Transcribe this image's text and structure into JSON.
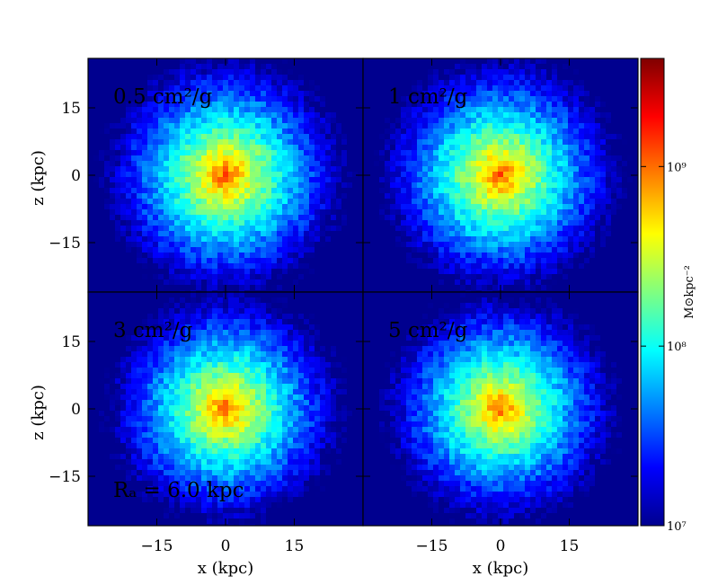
{
  "chart_data": {
    "type": "heatmap",
    "x_unit_label": "x (kpc)",
    "z_unit_label": "z (kpc)",
    "x_ticks": [
      -15,
      0,
      15
    ],
    "z_ticks": [
      15,
      0,
      -15
    ],
    "x_tick_labels": [
      "−15",
      "0",
      "15"
    ],
    "z_tick_labels": [
      "15",
      "0",
      "−15"
    ],
    "xlim": [
      -30,
      30
    ],
    "zlim": [
      -26,
      26
    ],
    "grid": false,
    "colorbar": {
      "label": "M⊙kpc⁻²",
      "scale": "log",
      "range": [
        10000000,
        4000000000
      ],
      "tick_values": [
        10000000,
        100000000,
        1000000000
      ],
      "tick_labels": [
        "10⁷",
        "10⁸",
        "10⁹"
      ],
      "colormap": [
        "#00008f",
        "#0000ff",
        "#0080ff",
        "#00ffff",
        "#80ff80",
        "#ffff00",
        "#ff8000",
        "#ff0000",
        "#800000"
      ]
    },
    "extra_annotation": "Rₐ = 6.0 kpc",
    "panels": [
      {
        "label": "0.5 cm²/g",
        "peak_surface_density": 1500000000
      },
      {
        "label": "1 cm²/g",
        "peak_surface_density": 1450000000
      },
      {
        "label": "3 cm²/g",
        "peak_surface_density": 1350000000
      },
      {
        "label": "5 cm²/g",
        "peak_surface_density": 1300000000
      }
    ]
  }
}
